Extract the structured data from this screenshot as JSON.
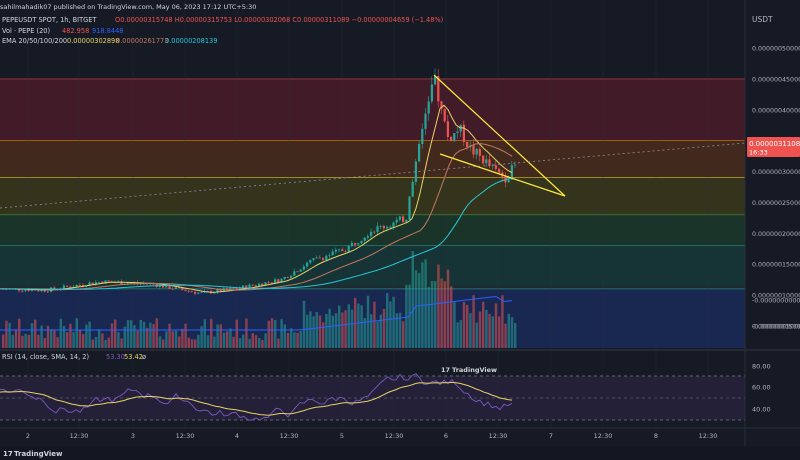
{
  "header": {
    "published_by": "sahilmahadik07 published on TradingView.com, May 06, 2023 17:12 UTC+5:30",
    "symbol_line": "PEPEUSDT SPOT, 1h, BITGET",
    "ohlc": "O0.00000315748 H0.00000315753 L0.00000302068 C0.00000311089 −0.00000004659 (−1.48%)",
    "vol_label": "Vol · PEPE (20)",
    "vol_values": [
      "482.958",
      "918.8448"
    ],
    "ema_label": "EMA 20/50/100/200",
    "ema_values": [
      "0.00000302898",
      "0.00000261773",
      "0.00000208139"
    ],
    "currency": "USDT"
  },
  "rsi": {
    "label": "RSI (14, close, SMA, 14, 2)",
    "values": [
      "53.30",
      "53.42"
    ],
    "extra": "ø",
    "axis_labels": [
      "80.00",
      "60.00",
      "40.00"
    ]
  },
  "price_badge": {
    "value": "0.00000311089",
    "countdown": "16:33"
  },
  "price_axis_labels": [
    "0.000000500000",
    "0.000000450000",
    "0.000000400000",
    "0.000000350000",
    "0.000000300000",
    "0.000000250000",
    "0.000000200000",
    "0.000000150000",
    "0.000000100000",
    "0.000000050000"
  ],
  "volume_axis_labels": [
    "-0.000000000000",
    "-0.000000050000"
  ],
  "time_axis_labels": [
    "2",
    "12:30",
    "3",
    "12:30",
    "4",
    "12:30",
    "5",
    "12:30",
    "6",
    "12:30",
    "7",
    "12:30",
    "8",
    "12:30"
  ],
  "watermark": "TradingView",
  "colors": {
    "background": "#161a25",
    "up": "#26a69a",
    "down": "#ef5350",
    "ema20": "#e8d36a",
    "ema50": "#c0785f",
    "ema100": "#26c6da",
    "wedge": "#ffeb3b",
    "rsi_line": "#7e57c2",
    "rsi_ma": "#e8d36a",
    "price_badge": "#ef5350"
  },
  "chart_data": {
    "type": "candlestick",
    "x": [
      "2",
      "12:30",
      "3",
      "12:30",
      "4",
      "12:30",
      "5",
      "12:30",
      "6",
      "12:30",
      "7",
      "12:30",
      "8",
      "12:30"
    ],
    "ylim": [
      5e-08,
      5e-07
    ],
    "approx_close_path": [
      {
        "x": "2",
        "close": 1.1e-07
      },
      {
        "x": "3",
        "close": 1.18e-07
      },
      {
        "x": "4",
        "close": 1.03e-07
      },
      {
        "x": "12:30",
        "close": 1.25e-07
      },
      {
        "x": "5",
        "close": 1.65e-07
      },
      {
        "x": "12:30",
        "close": 2.15e-07
      },
      {
        "x": "6",
        "close": 4.5e-07
      },
      {
        "x": "12:30",
        "close": 3.1e-07
      }
    ],
    "last_close": 3.11089e-06,
    "fib_levels": [
      4.5e-07,
      3.5e-07,
      2.9e-07,
      2.3e-07,
      1.8e-07,
      1.1e-07
    ],
    "series": [
      {
        "name": "EMA 20",
        "last": 3.02898e-06
      },
      {
        "name": "EMA 50",
        "last": 2.61773e-06
      },
      {
        "name": "EMA 100",
        "last": 2.08139e-06
      }
    ],
    "volume": {
      "name": "Vol · PEPE (20)",
      "last": 482.958,
      "ma": 918.8448
    },
    "rsi": {
      "name": "RSI (14, close, SMA, 14, 2)",
      "last": 53.3,
      "ma": 53.42,
      "levels": [
        70,
        50,
        30
      ]
    }
  }
}
